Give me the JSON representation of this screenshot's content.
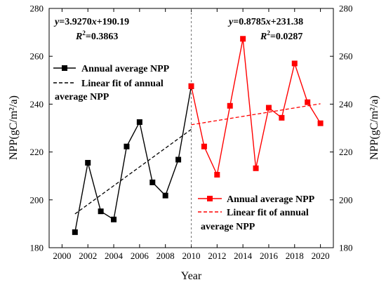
{
  "chart_data": {
    "type": "line",
    "xlabel": "Year",
    "ylabel_left": "NPP(gC/m²/a)",
    "ylabel_right": "NPP(gC/m²/a)",
    "xlim": [
      1999,
      2021
    ],
    "ylim": [
      180,
      280
    ],
    "x_ticks": [
      2000,
      2002,
      2004,
      2006,
      2008,
      2010,
      2012,
      2014,
      2016,
      2018,
      2020
    ],
    "y_ticks": [
      180,
      200,
      220,
      240,
      260,
      280
    ],
    "divider_x": 2010,
    "series": [
      {
        "name": "Annual average NPP",
        "color": "#000000",
        "x": [
          2001,
          2002,
          2003,
          2004,
          2005,
          2006,
          2007,
          2008,
          2009,
          2010
        ],
        "values": [
          186.5,
          215.5,
          195.2,
          191.8,
          222.3,
          232.5,
          207.3,
          201.8,
          216.8,
          247.5
        ]
      },
      {
        "name": "Annual average NPP",
        "color": "#ff0000",
        "x": [
          2010,
          2011,
          2012,
          2013,
          2014,
          2015,
          2016,
          2017,
          2018,
          2019,
          2020
        ],
        "values": [
          247.5,
          222.3,
          210.5,
          239.3,
          267.3,
          213.2,
          238.5,
          234.3,
          257.0,
          240.8,
          232.0
        ]
      }
    ],
    "fits": [
      {
        "name": "Linear fit of annual average NPP",
        "color": "#000000",
        "slope": 3.927,
        "intercept_at_2000": 190.19,
        "x_range": [
          2001,
          2010
        ],
        "equation": "y=3.9270x+190.19",
        "r2": "R²=0.3863"
      },
      {
        "name": "Linear fit of annual average NPP",
        "color": "#ff0000",
        "slope": 0.8785,
        "intercept_at_2010": 231.38,
        "x_range": [
          2010,
          2020
        ],
        "equation": "y=0.8785x+231.38",
        "r2": "R²=0.0287"
      }
    ],
    "legends": [
      {
        "placement": "top-left",
        "color": "#000000",
        "line1": "Annual average NPP",
        "fit_line1": "Linear fit of annual",
        "fit_line2": "average NPP"
      },
      {
        "placement": "bottom-right",
        "color": "#ff0000",
        "line1": "Annual average NPP",
        "fit_line1": "Linear fit of annual",
        "fit_line2": "average NPP"
      }
    ],
    "equations": {
      "left": {
        "eq_prefix": "y",
        "eq_body": "=3.9270",
        "eq_x": "x",
        "eq_tail": "+190.19",
        "r_prefix": "R",
        "r_sup": "2",
        "r_tail": "=0.3863"
      },
      "right": {
        "eq_prefix": "y",
        "eq_body": "=0.8785",
        "eq_x": "x",
        "eq_tail": "+231.38",
        "r_prefix": "R",
        "r_sup": "2",
        "r_tail": "=0.0287"
      }
    }
  }
}
